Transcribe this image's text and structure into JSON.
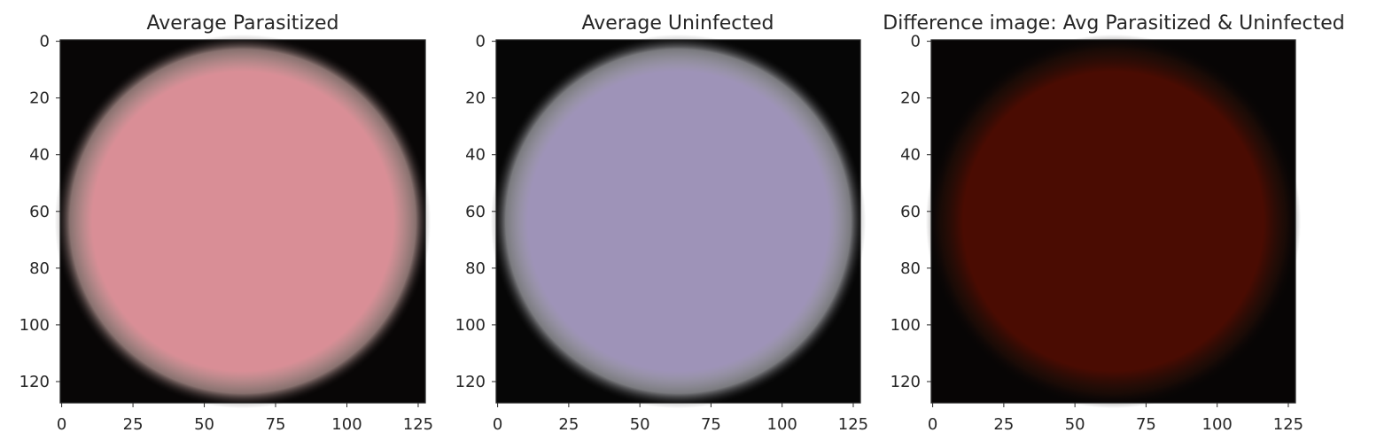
{
  "chart_data": [
    {
      "type": "image",
      "title": "Average Parasitized",
      "xlim": [
        0,
        128
      ],
      "ylim": [
        128,
        0
      ],
      "xticks": [
        0,
        25,
        50,
        75,
        100,
        125
      ],
      "yticks": [
        0,
        20,
        40,
        60,
        80,
        100,
        120
      ],
      "xlabel": "",
      "ylabel": "",
      "blob_color": "#d98e96",
      "edge_color": "#f0c8c4",
      "background_color": "#080606"
    },
    {
      "type": "image",
      "title": "Average Uninfected",
      "xlim": [
        0,
        128
      ],
      "ylim": [
        128,
        0
      ],
      "xticks": [
        0,
        25,
        50,
        75,
        100,
        125
      ],
      "yticks": [
        0,
        20,
        40,
        60,
        80,
        100,
        120
      ],
      "xlabel": "",
      "ylabel": "",
      "blob_color": "#9e93b8",
      "edge_color": "#d8d8e0",
      "background_color": "#060606"
    },
    {
      "type": "image",
      "title": "Difference image: Avg Parasitized & Uninfected",
      "xlim": [
        0,
        128
      ],
      "ylim": [
        128,
        0
      ],
      "xticks": [
        0,
        25,
        50,
        75,
        100,
        125
      ],
      "yticks": [
        0,
        20,
        40,
        60,
        80,
        100,
        120
      ],
      "xlabel": "",
      "ylabel": "",
      "blob_color": "#4a0c02",
      "edge_color": "#2a1008",
      "background_color": "#070505"
    }
  ]
}
